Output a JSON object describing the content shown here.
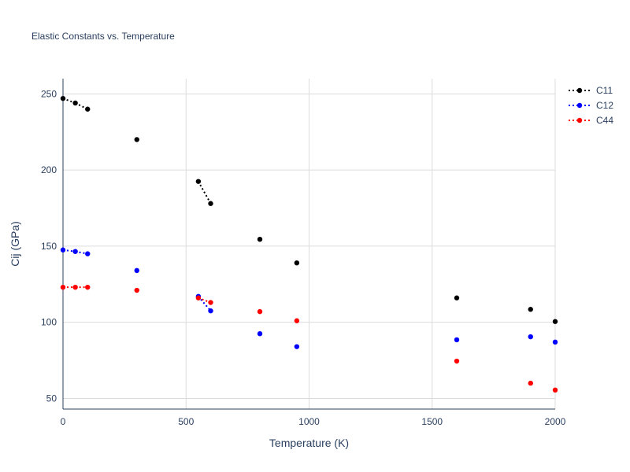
{
  "chart_data": {
    "type": "scatter",
    "title": "Elastic Constants vs. Temperature",
    "xlabel": "Temperature (K)",
    "ylabel": "Cij (GPa)",
    "xlim": [
      0,
      2000
    ],
    "ylim": [
      43,
      260
    ],
    "xticks": [
      0,
      500,
      1000,
      1500,
      2000
    ],
    "yticks": [
      50,
      100,
      150,
      200,
      250
    ],
    "xtick_labels": [
      "0",
      "500",
      "1000",
      "1500",
      "2000"
    ],
    "ytick_labels": [
      "50",
      "100",
      "150",
      "200",
      "250"
    ],
    "grid": true,
    "legend_position": "top-right",
    "series": [
      {
        "name": "C11",
        "color": "#000000",
        "points": [
          [
            0,
            247
          ],
          [
            50,
            244
          ],
          [
            100,
            240
          ],
          [
            300,
            220
          ],
          [
            550,
            192.5
          ],
          [
            600,
            178
          ],
          [
            800,
            154.5
          ],
          [
            950,
            139
          ],
          [
            1600,
            116
          ],
          [
            1900,
            108.5
          ],
          [
            2000,
            100.5
          ]
        ],
        "dotted_segments": [
          [
            0,
            1
          ],
          [
            1,
            2
          ],
          [
            4,
            5
          ]
        ]
      },
      {
        "name": "C12",
        "color": "#0000ff",
        "points": [
          [
            0,
            147.5
          ],
          [
            50,
            146.5
          ],
          [
            100,
            145
          ],
          [
            300,
            134
          ],
          [
            550,
            117
          ],
          [
            600,
            107.5
          ],
          [
            800,
            92.5
          ],
          [
            950,
            84
          ],
          [
            1600,
            88.5
          ],
          [
            1900,
            90.5
          ],
          [
            2000,
            87
          ]
        ],
        "dotted_segments": [
          [
            0,
            1
          ],
          [
            1,
            2
          ],
          [
            4,
            5
          ]
        ]
      },
      {
        "name": "C44",
        "color": "#ff0000",
        "points": [
          [
            0,
            123
          ],
          [
            50,
            123
          ],
          [
            100,
            123
          ],
          [
            300,
            121
          ],
          [
            550,
            116
          ],
          [
            600,
            113
          ],
          [
            800,
            107
          ],
          [
            950,
            101
          ],
          [
            1600,
            74.5
          ],
          [
            1900,
            60
          ],
          [
            2000,
            55.5
          ]
        ],
        "dotted_segments": [
          [
            0,
            1
          ],
          [
            1,
            2
          ],
          [
            4,
            5
          ]
        ]
      }
    ]
  }
}
